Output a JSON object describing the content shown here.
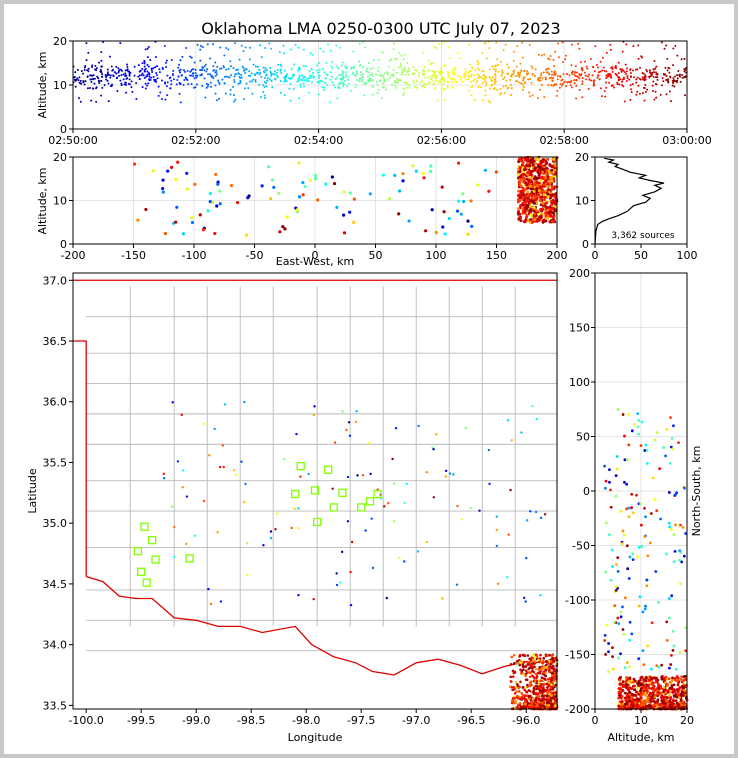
{
  "title": "Oklahoma LMA 0250-0300 UTC July 07, 2023",
  "colors": {
    "state_border": "#e00000",
    "county_lines": "#b8b8b8",
    "station_marker": "#7fff00",
    "frame": "#c8c8c8"
  },
  "chart_data": [
    {
      "id": "time_height",
      "type": "scatter",
      "ylabel": "Altitude, km",
      "xlabel": "",
      "xticks": [
        "02:50:00",
        "02:52:00",
        "02:54:00",
        "02:56:00",
        "02:58:00",
        "03:00:00"
      ],
      "xlim_minutes": [
        0,
        10
      ],
      "ylim": [
        0,
        20
      ],
      "yticks": [
        0,
        10,
        20
      ],
      "colormap": "jet by time",
      "points": "dense band of sources between ~5 and ~20 km altitude spanning the full 10 minutes"
    },
    {
      "id": "east_west_altitude",
      "type": "scatter",
      "xlabel": "East-West, km",
      "ylabel": "Altitude, km",
      "xlim": [
        -200,
        200
      ],
      "ylim": [
        0,
        20
      ],
      "xticks": [
        -200,
        -150,
        -100,
        -50,
        0,
        50,
        100,
        150,
        200
      ],
      "yticks": [
        0,
        10,
        20
      ]
    },
    {
      "id": "altitude_histogram",
      "type": "line",
      "xlim": [
        0,
        100
      ],
      "ylim": [
        0,
        20
      ],
      "xticks": [
        0,
        50,
        100
      ],
      "yticks": [
        0,
        10,
        20
      ],
      "annotation": "3,362 sources",
      "profile": [
        [
          0,
          0
        ],
        [
          1,
          3
        ],
        [
          3,
          4.5
        ],
        [
          8,
          5.2
        ],
        [
          15,
          5.8
        ],
        [
          25,
          6.5
        ],
        [
          35,
          7.5
        ],
        [
          42,
          8.8
        ],
        [
          55,
          9.6
        ],
        [
          60,
          10.5
        ],
        [
          52,
          11.2
        ],
        [
          65,
          12
        ],
        [
          72,
          12.8
        ],
        [
          65,
          13.5
        ],
        [
          75,
          14
        ],
        [
          60,
          14.6
        ],
        [
          48,
          15.2
        ],
        [
          55,
          15.8
        ],
        [
          38,
          16.5
        ],
        [
          30,
          17.2
        ],
        [
          22,
          17.8
        ],
        [
          25,
          18.3
        ],
        [
          15,
          18.8
        ],
        [
          20,
          19.3
        ],
        [
          10,
          19.7
        ]
      ]
    },
    {
      "id": "plan_view_map",
      "type": "scatter",
      "xlabel": "Longitude",
      "ylabel": "Latitude",
      "xlim": [
        -100.12,
        -95.72
      ],
      "ylim": [
        33.47,
        37.06
      ],
      "xticks": [
        -100.0,
        -99.5,
        -99.0,
        -98.5,
        -98.0,
        -97.5,
        -97.0,
        -96.5,
        -96.0
      ],
      "yticks": [
        33.5,
        34.0,
        34.5,
        35.0,
        35.5,
        36.0,
        36.5,
        37.0
      ],
      "stations": [
        [
          -99.47,
          34.97
        ],
        [
          -99.4,
          34.86
        ],
        [
          -99.53,
          34.77
        ],
        [
          -99.37,
          34.7
        ],
        [
          -99.5,
          34.6
        ],
        [
          -99.45,
          34.51
        ],
        [
          -99.06,
          34.71
        ],
        [
          -98.1,
          35.24
        ],
        [
          -98.05,
          35.47
        ],
        [
          -97.92,
          35.27
        ],
        [
          -97.8,
          35.44
        ],
        [
          -97.9,
          35.01
        ],
        [
          -97.75,
          35.13
        ],
        [
          -97.67,
          35.25
        ],
        [
          -97.5,
          35.13
        ],
        [
          -97.42,
          35.18
        ],
        [
          -97.35,
          35.24
        ]
      ]
    },
    {
      "id": "altitude_north_south",
      "type": "scatter",
      "xlabel": "Altitude, km",
      "ylabel": "North-South, km",
      "xlim": [
        0,
        20
      ],
      "ylim": [
        -200,
        200
      ],
      "xticks": [
        0,
        10,
        20
      ],
      "yticks": [
        -200,
        -150,
        -100,
        -50,
        0,
        50,
        100,
        150,
        200
      ]
    }
  ]
}
